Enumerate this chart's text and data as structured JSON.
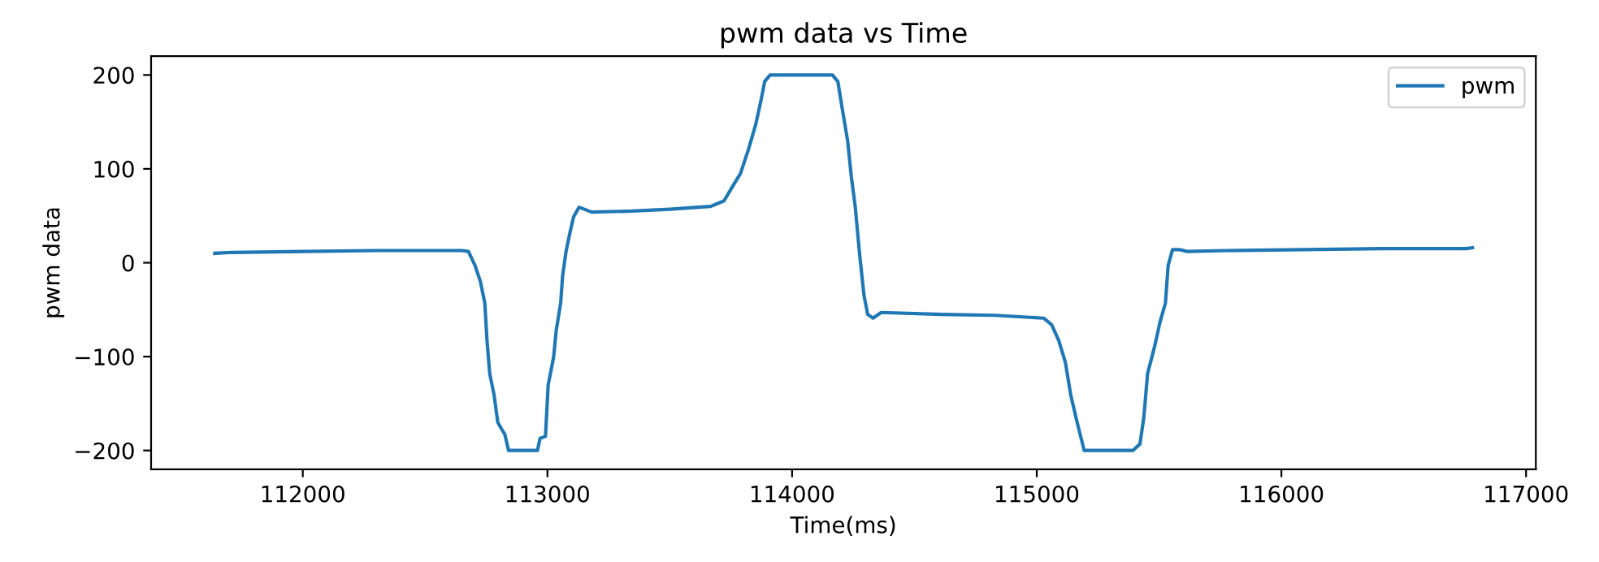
{
  "chart_data": {
    "type": "line",
    "title": "pwm data vs Time",
    "xlabel": "Time(ms)",
    "ylabel": "pwm data",
    "xlim": [
      111380,
      117040
    ],
    "xticks": [
      112000,
      113000,
      114000,
      115000,
      116000,
      117000
    ],
    "ylim": [
      -220,
      220
    ],
    "yticks": [
      -200,
      -100,
      0,
      100,
      200
    ],
    "grid": false,
    "legend": "top right",
    "line_style": "solid",
    "marker": "none",
    "series": [
      {
        "name": "pwm",
        "color": "#1f77b4",
        "x": [
          111640,
          111708,
          112007,
          112305,
          112649,
          112677,
          112704,
          112726,
          112744,
          112753,
          112764,
          112782,
          112797,
          112810,
          112826,
          112841,
          112959,
          112970,
          112992,
          113003,
          113025,
          113036,
          113054,
          113062,
          113076,
          113092,
          113107,
          113129,
          113151,
          113180,
          113346,
          113501,
          113667,
          113722,
          113756,
          113789,
          113822,
          113851,
          113873,
          113888,
          113910,
          114165,
          114187,
          114205,
          114227,
          114242,
          114258,
          114276,
          114294,
          114309,
          114331,
          114364,
          114610,
          114829,
          115028,
          115061,
          115090,
          115117,
          115139,
          115165,
          115194,
          115393,
          115422,
          115438,
          115453,
          115482,
          115504,
          115526,
          115537,
          115555,
          115582,
          115615,
          115781,
          116090,
          116412,
          116755,
          116781
        ],
        "values": [
          10,
          11,
          12,
          13,
          13,
          12,
          -3,
          -20,
          -43,
          -83,
          -118,
          -141,
          -170,
          -176,
          -183,
          -200,
          -200,
          -187,
          -185,
          -130,
          -101,
          -72,
          -43,
          -14,
          12,
          32,
          49,
          59,
          57,
          54,
          55,
          57,
          60,
          66,
          81,
          95,
          121,
          147,
          173,
          193,
          200,
          200,
          193,
          164,
          130,
          92,
          60,
          9,
          -35,
          -55,
          -59,
          -53,
          -55,
          -56,
          -59,
          -66,
          -83,
          -106,
          -141,
          -170,
          -200,
          -200,
          -193,
          -164,
          -118,
          -89,
          -63,
          -43,
          -3,
          14,
          14,
          12,
          13,
          14,
          15,
          15,
          16
        ]
      }
    ]
  }
}
